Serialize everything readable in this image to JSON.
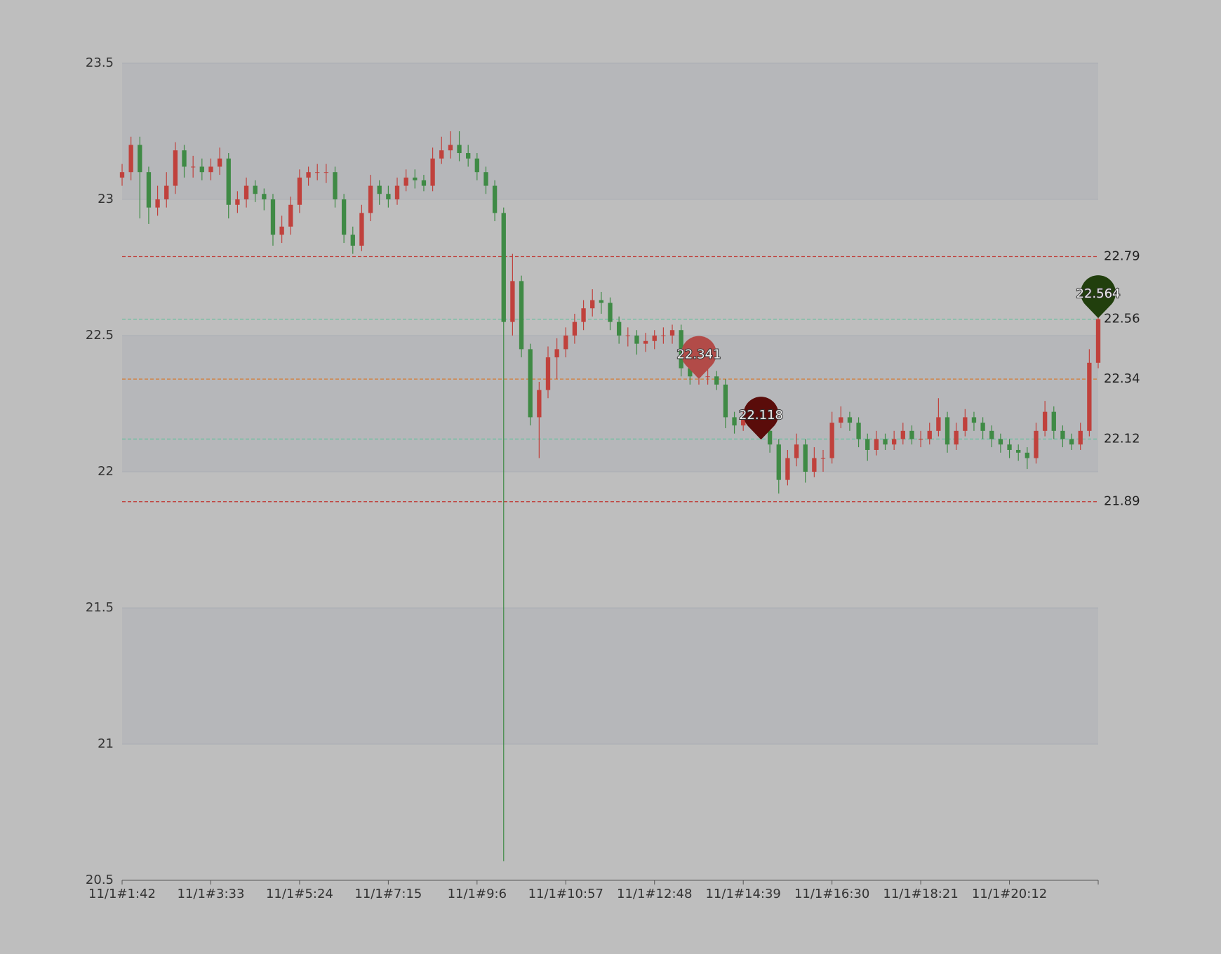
{
  "chart_data": {
    "type": "candlestick",
    "categories": [
      "11/1#1:42",
      null,
      null,
      null,
      null,
      null,
      null,
      null,
      null,
      null,
      "11/1#3:33",
      null,
      null,
      null,
      null,
      null,
      null,
      null,
      null,
      null,
      "11/1#5:24",
      null,
      null,
      null,
      null,
      null,
      null,
      null,
      null,
      null,
      "11/1#7:15",
      null,
      null,
      null,
      null,
      null,
      null,
      null,
      null,
      null,
      "11/1#9:6",
      null,
      null,
      null,
      null,
      null,
      null,
      null,
      null,
      null,
      "11/1#10:57",
      null,
      null,
      null,
      null,
      null,
      null,
      null,
      null,
      null,
      "11/1#12:48",
      null,
      null,
      null,
      null,
      null,
      null,
      null,
      null,
      null,
      "11/1#14:39",
      null,
      null,
      null,
      null,
      null,
      null,
      null,
      null,
      null,
      "11/1#16:30",
      null,
      null,
      null,
      null,
      null,
      null,
      null,
      null,
      null,
      "11/1#18:21",
      null,
      null,
      null,
      null,
      null,
      null,
      null,
      null,
      null,
      "11/1#20:12",
      null,
      null,
      null,
      null,
      null,
      null,
      null,
      null,
      null,
      null
    ],
    "open": [
      23.08,
      23.1,
      23.2,
      23.1,
      22.97,
      23.0,
      23.05,
      23.18,
      23.12,
      23.12,
      23.1,
      23.12,
      23.15,
      22.98,
      23.0,
      23.05,
      23.02,
      23.0,
      22.87,
      22.9,
      22.98,
      23.08,
      23.1,
      23.1,
      23.1,
      23.0,
      22.87,
      22.83,
      22.95,
      23.05,
      23.02,
      23.0,
      23.05,
      23.08,
      23.07,
      23.05,
      23.15,
      23.18,
      23.2,
      23.17,
      23.15,
      23.1,
      23.05,
      22.95,
      22.55,
      22.7,
      22.45,
      22.2,
      22.3,
      22.42,
      22.45,
      22.5,
      22.55,
      22.6,
      22.63,
      22.62,
      22.55,
      22.5,
      22.5,
      22.47,
      22.48,
      22.5,
      22.5,
      22.52,
      22.38,
      22.35,
      22.35,
      22.35,
      22.32,
      22.2,
      22.17,
      22.2,
      22.22,
      22.15,
      22.1,
      21.97,
      22.05,
      22.1,
      22.0,
      22.05,
      22.05,
      22.18,
      22.2,
      22.18,
      22.12,
      22.08,
      22.12,
      22.1,
      22.12,
      22.15,
      22.12,
      22.12,
      22.15,
      22.2,
      22.1,
      22.15,
      22.2,
      22.18,
      22.15,
      22.12,
      22.1,
      22.08,
      22.07,
      22.05,
      22.15,
      22.22,
      22.15,
      22.12,
      22.1,
      22.15,
      22.4
    ],
    "high": [
      23.13,
      23.23,
      23.23,
      23.12,
      23.05,
      23.1,
      23.21,
      23.2,
      23.16,
      23.15,
      23.15,
      23.19,
      23.17,
      23.03,
      23.08,
      23.07,
      23.04,
      23.02,
      22.94,
      23.01,
      23.11,
      23.12,
      23.13,
      23.13,
      23.12,
      23.02,
      22.9,
      22.98,
      23.09,
      23.07,
      23.05,
      23.08,
      23.11,
      23.11,
      23.09,
      23.19,
      23.23,
      23.25,
      23.25,
      23.2,
      23.17,
      23.12,
      23.07,
      22.97,
      22.8,
      22.72,
      22.47,
      22.33,
      22.46,
      22.49,
      22.53,
      22.58,
      22.63,
      22.67,
      22.66,
      22.64,
      22.57,
      22.53,
      22.52,
      22.51,
      22.52,
      22.53,
      22.54,
      22.54,
      22.4,
      22.38,
      22.38,
      22.37,
      22.34,
      22.22,
      22.23,
      22.24,
      22.24,
      22.17,
      22.12,
      22.08,
      22.14,
      22.12,
      22.09,
      22.08,
      22.22,
      22.24,
      22.22,
      22.2,
      22.14,
      22.15,
      22.14,
      22.15,
      22.18,
      22.17,
      22.15,
      22.18,
      22.27,
      22.22,
      22.18,
      22.23,
      22.22,
      22.2,
      22.17,
      22.14,
      22.12,
      22.1,
      22.09,
      22.18,
      22.26,
      22.24,
      22.17,
      22.14,
      22.18,
      22.45,
      22.58
    ],
    "low": [
      23.05,
      23.07,
      22.93,
      22.91,
      22.94,
      22.97,
      23.02,
      23.08,
      23.08,
      23.07,
      23.07,
      23.09,
      22.93,
      22.95,
      22.97,
      22.99,
      22.96,
      22.83,
      22.84,
      22.87,
      22.95,
      23.05,
      23.07,
      23.06,
      22.97,
      22.84,
      22.8,
      22.81,
      22.92,
      22.98,
      22.97,
      22.98,
      23.03,
      23.04,
      23.03,
      23.03,
      23.13,
      23.15,
      23.14,
      23.12,
      23.07,
      23.02,
      22.92,
      20.57,
      22.5,
      22.42,
      22.17,
      22.05,
      22.27,
      22.34,
      22.42,
      22.47,
      22.52,
      22.57,
      22.58,
      22.52,
      22.47,
      22.46,
      22.43,
      22.44,
      22.45,
      22.47,
      22.47,
      22.35,
      22.32,
      22.32,
      22.32,
      22.3,
      22.16,
      22.14,
      22.15,
      22.18,
      22.12,
      22.07,
      21.92,
      21.95,
      22.02,
      21.96,
      21.98,
      22.0,
      22.03,
      22.16,
      22.15,
      22.09,
      22.04,
      22.06,
      22.08,
      22.08,
      22.1,
      22.1,
      22.09,
      22.1,
      22.13,
      22.07,
      22.08,
      22.13,
      22.15,
      22.12,
      22.09,
      22.07,
      22.05,
      22.04,
      22.01,
      22.03,
      22.13,
      22.12,
      22.09,
      22.08,
      22.08,
      22.13,
      22.38
    ],
    "close": [
      23.1,
      23.2,
      23.1,
      22.97,
      23.0,
      23.05,
      23.18,
      23.12,
      23.12,
      23.1,
      23.12,
      23.15,
      22.98,
      23.0,
      23.05,
      23.02,
      23.0,
      22.87,
      22.9,
      22.98,
      23.08,
      23.1,
      23.1,
      23.1,
      23.0,
      22.87,
      22.83,
      22.95,
      23.05,
      23.02,
      23.0,
      23.05,
      23.08,
      23.07,
      23.05,
      23.15,
      23.18,
      23.2,
      23.17,
      23.15,
      23.1,
      23.05,
      22.95,
      22.55,
      22.7,
      22.45,
      22.2,
      22.3,
      22.42,
      22.45,
      22.5,
      22.55,
      22.6,
      22.63,
      22.62,
      22.55,
      22.5,
      22.5,
      22.47,
      22.48,
      22.5,
      22.5,
      22.52,
      22.38,
      22.35,
      22.35,
      22.35,
      22.32,
      22.2,
      22.17,
      22.2,
      22.22,
      22.15,
      22.1,
      21.97,
      22.05,
      22.1,
      22.0,
      22.05,
      22.05,
      22.18,
      22.2,
      22.18,
      22.12,
      22.08,
      22.12,
      22.1,
      22.12,
      22.15,
      22.12,
      22.12,
      22.15,
      22.2,
      22.1,
      22.15,
      22.2,
      22.18,
      22.15,
      22.12,
      22.1,
      22.08,
      22.07,
      22.05,
      22.15,
      22.22,
      22.15,
      22.12,
      22.1,
      22.15,
      22.4,
      22.56
    ],
    "up_color": "#c0413c",
    "down_color": "#3f8a45",
    "ylim": [
      20.5,
      23.5
    ],
    "yticks": [
      20.5,
      21,
      21.5,
      22,
      22.5,
      23,
      23.5
    ],
    "grid": true,
    "split_area": true,
    "mark_lines": [
      {
        "value": 22.79,
        "color": "#c0413c"
      },
      {
        "value": 22.56,
        "color": "#6cbfa0"
      },
      {
        "value": 22.34,
        "color": "#d2803f"
      },
      {
        "value": 22.12,
        "color": "#6cbfa0"
      },
      {
        "value": 21.89,
        "color": "#c0413c"
      }
    ],
    "mark_points": [
      {
        "value": 22.341,
        "index": 65,
        "color": "#b24b48"
      },
      {
        "value": 22.118,
        "index": 72,
        "color": "#5a0c0a"
      },
      {
        "value": 22.564,
        "index": 110,
        "color": "#213f0d"
      }
    ]
  }
}
